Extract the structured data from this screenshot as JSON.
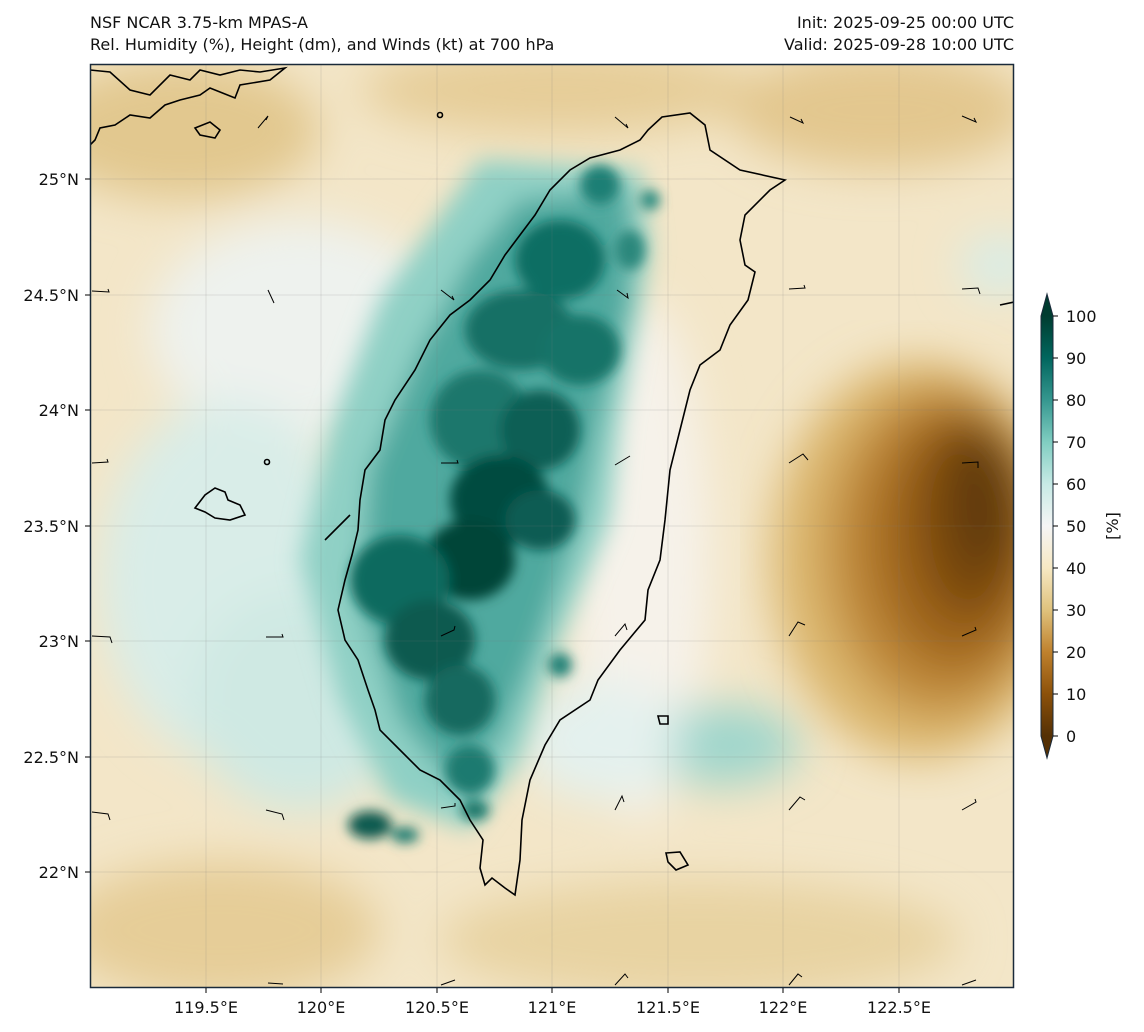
{
  "header": {
    "model": "NSF NCAR 3.75-km MPAS-A",
    "fields": "Rel. Humidity (%), Height (dm), and Winds (kt) at 700 hPa",
    "init": "Init: 2025-09-25 00:00 UTC",
    "valid": "Valid: 2025-09-28 10:00 UTC"
  },
  "axes": {
    "lon_labels": [
      "119.5°E",
      "120°E",
      "120.5°E",
      "121°E",
      "121.5°E",
      "122°E",
      "122.5°E"
    ],
    "lat_labels": [
      "25°N",
      "24.5°N",
      "24°N",
      "23.5°N",
      "23°N",
      "22.5°N",
      "22°N"
    ]
  },
  "colorbar": {
    "unit_label": "[%]",
    "ticks": [
      "100",
      "90",
      "80",
      "70",
      "60",
      "50",
      "40",
      "30",
      "20",
      "10",
      "0"
    ],
    "colors": [
      "#543005",
      "#8c510a",
      "#bf812d",
      "#dfc27d",
      "#f6e8c3",
      "#f5f5f5",
      "#c7eae5",
      "#80cdc1",
      "#35978f",
      "#01665e",
      "#003c30"
    ]
  },
  "colors": {
    "background": "#f3ecd9",
    "coastline": "#000000",
    "frame": "#1a2a3a"
  },
  "map_data": {
    "region": "Taiwan",
    "lon_range": [
      119.0,
      123.0
    ],
    "lat_range": [
      21.5,
      25.5
    ],
    "contour_field": "Height (dm)",
    "wind_field": "Winds (kt)"
  }
}
